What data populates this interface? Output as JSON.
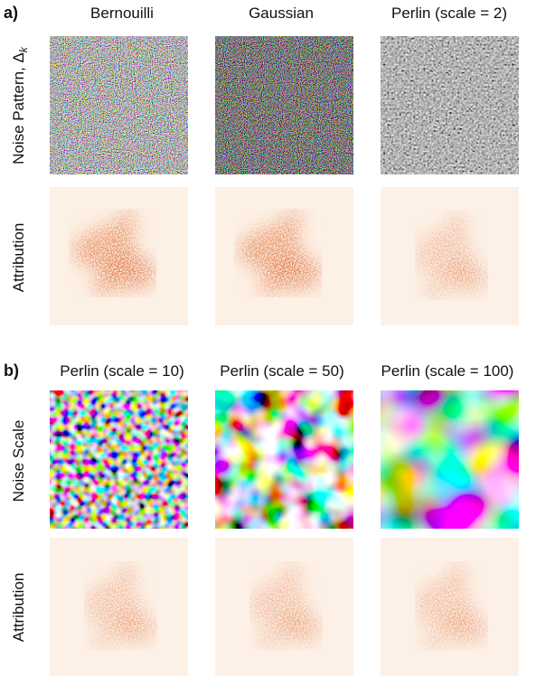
{
  "panel_a": {
    "label": "a)",
    "columns": [
      "Bernouilli",
      "Gaussian",
      "Perlin (scale = 2)"
    ],
    "row_1": {
      "text": "Noise Pattern, Δ",
      "subscript": "k"
    },
    "row_2": "Attribution"
  },
  "panel_b": {
    "label": "b)",
    "columns": [
      "Perlin (scale = 10)",
      "Perlin (scale = 50)",
      "Perlin (scale = 100)"
    ],
    "row_1": "Noise Scale",
    "row_2": "Attribution"
  }
}
